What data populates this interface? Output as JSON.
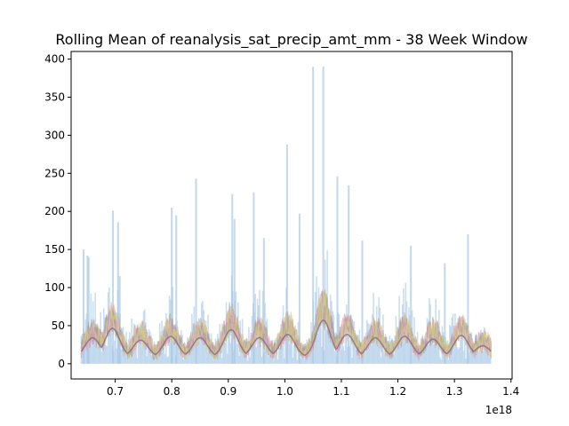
{
  "chart_data": {
    "type": "line",
    "title": "Rolling Mean of reanalysis_sat_precip_amt_mm - 38 Week Window",
    "xlabel": "",
    "ylabel": "",
    "x_offset_label": "1e18",
    "xlim": [
      0.622,
      1.402
    ],
    "ylim": [
      -20,
      410
    ],
    "xticks": [
      0.7,
      0.8,
      0.9,
      1.0,
      1.1,
      1.2,
      1.3,
      1.4
    ],
    "xtick_labels": [
      "0.7",
      "0.8",
      "0.9",
      "1.0",
      "1.1",
      "1.2",
      "1.3",
      "1.4"
    ],
    "yticks": [
      0,
      50,
      100,
      150,
      200,
      250,
      300,
      350,
      400
    ],
    "ytick_labels": [
      "0",
      "50",
      "100",
      "150",
      "200",
      "250",
      "300",
      "350",
      "400"
    ],
    "grid": false,
    "legend": "none",
    "x_range_of_data": [
      0.64,
      1.365
    ],
    "series": [
      {
        "style": "vertical-bars",
        "color": "#a6c8e6",
        "peaks": [
          {
            "x": 0.644,
            "y": 150
          },
          {
            "x": 0.651,
            "y": 142
          },
          {
            "x": 0.653,
            "y": 140
          },
          {
            "x": 0.696,
            "y": 201
          },
          {
            "x": 0.705,
            "y": 186
          },
          {
            "x": 0.708,
            "y": 115
          },
          {
            "x": 0.8,
            "y": 205
          },
          {
            "x": 0.808,
            "y": 195
          },
          {
            "x": 0.843,
            "y": 243
          },
          {
            "x": 0.907,
            "y": 223
          },
          {
            "x": 0.911,
            "y": 190
          },
          {
            "x": 0.945,
            "y": 225
          },
          {
            "x": 0.963,
            "y": 165
          },
          {
            "x": 1.004,
            "y": 288
          },
          {
            "x": 1.026,
            "y": 197
          },
          {
            "x": 1.05,
            "y": 390
          },
          {
            "x": 1.068,
            "y": 390
          },
          {
            "x": 1.093,
            "y": 246
          },
          {
            "x": 1.113,
            "y": 234
          },
          {
            "x": 1.137,
            "y": 162
          },
          {
            "x": 1.223,
            "y": 155
          },
          {
            "x": 1.283,
            "y": 132
          },
          {
            "x": 1.324,
            "y": 170
          }
        ]
      },
      {
        "style": "rolling-lines",
        "colors": [
          "#f2a07a",
          "#9ccc8a",
          "#e88a8a",
          "#b49ad8",
          "#c8a98e",
          "#efa8d6",
          "#9a9a9a",
          "#d6d67a"
        ],
        "annual_cycle_peaks": [
          {
            "x": 0.66,
            "y": 55
          },
          {
            "x": 0.695,
            "y": 75
          },
          {
            "x": 0.745,
            "y": 50
          },
          {
            "x": 0.798,
            "y": 58
          },
          {
            "x": 0.85,
            "y": 55
          },
          {
            "x": 0.905,
            "y": 72
          },
          {
            "x": 0.955,
            "y": 55
          },
          {
            "x": 1.005,
            "y": 62
          },
          {
            "x": 1.068,
            "y": 92
          },
          {
            "x": 1.11,
            "y": 62
          },
          {
            "x": 1.16,
            "y": 55
          },
          {
            "x": 1.212,
            "y": 58
          },
          {
            "x": 1.262,
            "y": 52
          },
          {
            "x": 1.312,
            "y": 60
          },
          {
            "x": 1.35,
            "y": 38
          }
        ],
        "trough_level": 15
      }
    ]
  }
}
